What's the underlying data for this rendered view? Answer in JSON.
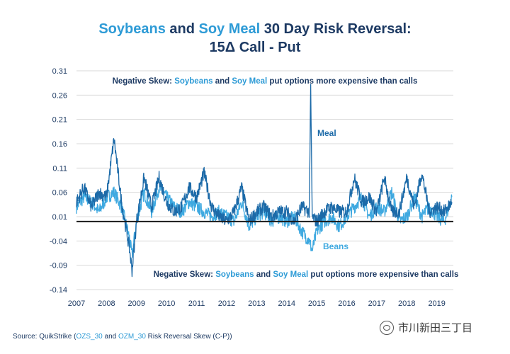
{
  "title": {
    "part1": "Soybeans",
    "part2": " and ",
    "part3": "Soy Meal",
    "part4": " 30 Day Risk Reversal:",
    "line2": "15Δ Call - Put"
  },
  "annotations": {
    "top": {
      "prefix": "Negative Skew: ",
      "soy": "Soybeans",
      "and": " and ",
      "meal": "Soy Meal",
      "suffix": " put options more expensive than calls"
    },
    "bottom": {
      "prefix": "Negative Skew: ",
      "soy": "Soybeans",
      "and": " and ",
      "meal": "Soy Meal",
      "suffix": " put options more expensive than calls"
    },
    "meal_label": "Meal",
    "beans_label": "Beans"
  },
  "source": {
    "prefix": "Source: QuikStrike (",
    "code1": "OZS_30",
    "and": " and ",
    "code2": "OZM_30",
    "suffix": " Risk Reversal Skew (C-P))"
  },
  "watermark": "市川新田三丁目",
  "colors": {
    "beans": "#3fa9e0",
    "meal": "#1c6aa8",
    "zero_line": "#1a1a1a",
    "grid": "#d9d9d9",
    "dark_text": "#1d3a63"
  },
  "chart_data": {
    "type": "line",
    "title": "Soybeans and Soy Meal 30 Day Risk Reversal: 15Δ Call - Put",
    "xlabel": "",
    "ylabel": "",
    "xlim": [
      2007.0,
      2019.55
    ],
    "ylim": [
      -0.14,
      0.31
    ],
    "x_ticks": [
      "2007",
      "2008",
      "2009",
      "2010",
      "2011",
      "2012",
      "2013",
      "2014",
      "2015",
      "2016",
      "2017",
      "2018",
      "2019"
    ],
    "y_ticks": [
      "0.31",
      "0.26",
      "0.21",
      "0.16",
      "0.11",
      "0.06",
      "0.01",
      "-0.04",
      "-0.09",
      "-0.14"
    ],
    "reference_line": 0.0,
    "grid": true,
    "series": [
      {
        "name": "Beans",
        "x": [
          2007.0,
          2007.25,
          2007.5,
          2007.75,
          2008.0,
          2008.25,
          2008.5,
          2008.75,
          2008.85,
          2009.0,
          2009.25,
          2009.5,
          2009.75,
          2010.0,
          2010.25,
          2010.5,
          2010.75,
          2011.0,
          2011.25,
          2011.5,
          2011.75,
          2012.0,
          2012.25,
          2012.5,
          2012.75,
          2013.0,
          2013.25,
          2013.5,
          2013.75,
          2014.0,
          2014.25,
          2014.5,
          2014.75,
          2014.85,
          2015.0,
          2015.25,
          2015.5,
          2015.75,
          2016.0,
          2016.25,
          2016.5,
          2016.75,
          2017.0,
          2017.25,
          2017.5,
          2017.75,
          2018.0,
          2018.25,
          2018.5,
          2018.75,
          2019.0,
          2019.25,
          2019.5
        ],
        "values": [
          0.03,
          0.05,
          0.04,
          0.02,
          0.05,
          0.06,
          0.03,
          -0.03,
          -0.07,
          0.0,
          0.06,
          0.02,
          0.07,
          0.05,
          0.03,
          0.02,
          0.04,
          0.03,
          0.02,
          0.01,
          0.02,
          0.01,
          0.0,
          0.04,
          -0.01,
          0.01,
          0.02,
          0.0,
          0.01,
          0.0,
          0.01,
          -0.02,
          -0.04,
          -0.06,
          -0.02,
          0.0,
          0.01,
          -0.01,
          0.01,
          0.03,
          0.05,
          0.01,
          0.03,
          0.02,
          0.06,
          0.0,
          0.01,
          0.05,
          0.01,
          0.03,
          0.01,
          0.0,
          0.05
        ]
      },
      {
        "name": "Meal",
        "x": [
          2007.0,
          2007.25,
          2007.5,
          2007.75,
          2008.0,
          2008.25,
          2008.5,
          2008.75,
          2008.85,
          2009.0,
          2009.25,
          2009.5,
          2009.75,
          2010.0,
          2010.25,
          2010.5,
          2010.75,
          2011.0,
          2011.25,
          2011.5,
          2011.75,
          2012.0,
          2012.25,
          2012.5,
          2012.75,
          2013.0,
          2013.25,
          2013.5,
          2013.75,
          2014.0,
          2014.25,
          2014.5,
          2014.75,
          2014.8,
          2014.85,
          2015.0,
          2015.25,
          2015.5,
          2015.75,
          2016.0,
          2016.25,
          2016.5,
          2016.75,
          2017.0,
          2017.25,
          2017.5,
          2017.75,
          2018.0,
          2018.25,
          2018.5,
          2018.75,
          2019.0,
          2019.25,
          2019.5
        ],
        "values": [
          0.04,
          0.07,
          0.03,
          0.06,
          0.05,
          0.17,
          0.04,
          -0.05,
          -0.1,
          0.0,
          0.09,
          0.03,
          0.09,
          0.04,
          0.02,
          0.03,
          0.07,
          0.05,
          0.1,
          0.03,
          0.01,
          0.0,
          0.02,
          0.07,
          0.0,
          0.02,
          0.03,
          0.01,
          0.02,
          0.02,
          0.0,
          0.03,
          0.02,
          0.27,
          0.01,
          0.0,
          0.02,
          0.03,
          0.02,
          0.02,
          0.09,
          0.04,
          0.05,
          0.02,
          0.09,
          0.02,
          0.02,
          0.09,
          0.03,
          0.1,
          0.02,
          0.03,
          0.02,
          0.04
        ]
      }
    ]
  }
}
